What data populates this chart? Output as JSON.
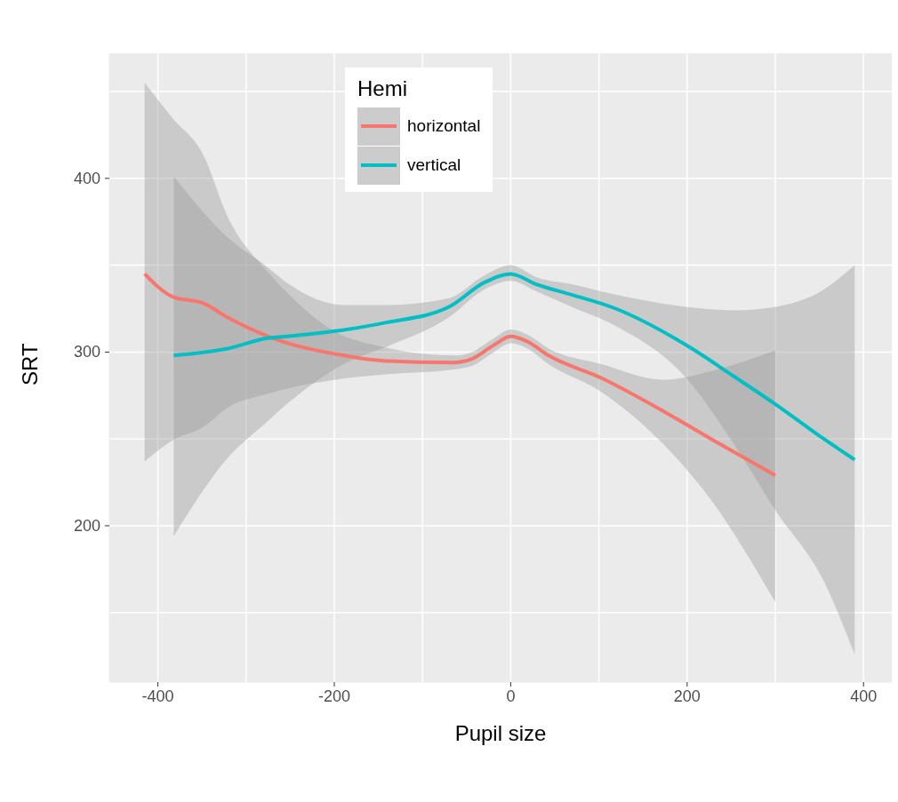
{
  "chart_data": {
    "type": "line",
    "xlabel": "Pupil size",
    "ylabel": "SRT",
    "legend_title": "Hemi",
    "legend": "top",
    "grid": true,
    "line_style": "solid",
    "marker": "none",
    "xlim": [
      -455,
      432
    ],
    "ylim": [
      110,
      472
    ],
    "xticks": [
      -400,
      {
        "value": -300,
        "label": null
      },
      -200,
      {
        "value": -100,
        "label": null
      },
      0,
      {
        "value": 100,
        "label": null
      },
      200,
      {
        "value": 300,
        "label": null
      },
      400
    ],
    "yticks": [
      {
        "value": 150,
        "label": null
      },
      200,
      {
        "value": 250,
        "label": null
      },
      300,
      {
        "value": 350,
        "label": null
      },
      400,
      {
        "value": 450,
        "label": null
      }
    ],
    "series": [
      {
        "name": "horizontal",
        "color": "#f8766d",
        "x": [
          -415,
          -384,
          -348,
          -321,
          -275,
          -245,
          -200,
          -145,
          -64,
          -44,
          -19,
          0,
          19,
          43,
          103,
          173,
          227,
          300
        ],
        "values": [
          345,
          332,
          328,
          320,
          309,
          304,
          299,
          295,
          294,
          296,
          304,
          309,
          306,
          298,
          285,
          266,
          250,
          229
        ],
        "lower": [
          237,
          249,
          257,
          268,
          276,
          280,
          284,
          287,
          290,
          292,
          300,
          305,
          302,
          293,
          277,
          247,
          215,
          156
        ],
        "upper": [
          455,
          435,
          413,
          378,
          346,
          330,
          312,
          303,
          298,
          300,
          308,
          313,
          310,
          302,
          293,
          284,
          289,
          301
        ]
      },
      {
        "name": "vertical",
        "color": "#00bfc4",
        "x": [
          -382,
          -321,
          -276,
          -254,
          -186,
          -141,
          -70,
          -30,
          0,
          29,
          69,
          119,
          199,
          253,
          300,
          355,
          390
        ],
        "values": [
          298,
          302,
          308,
          309,
          313,
          317,
          326,
          340,
          345,
          339,
          333,
          325,
          304,
          286,
          270,
          250,
          238
        ],
        "lower": [
          194,
          239,
          260,
          270,
          294,
          303,
          320,
          336,
          341,
          335,
          326,
          315,
          285,
          247,
          209,
          168,
          126
        ],
        "upper": [
          401,
          366,
          349,
          340,
          327,
          327,
          331,
          344,
          350,
          343,
          339,
          333,
          326,
          324,
          326,
          336,
          350
        ]
      }
    ]
  }
}
